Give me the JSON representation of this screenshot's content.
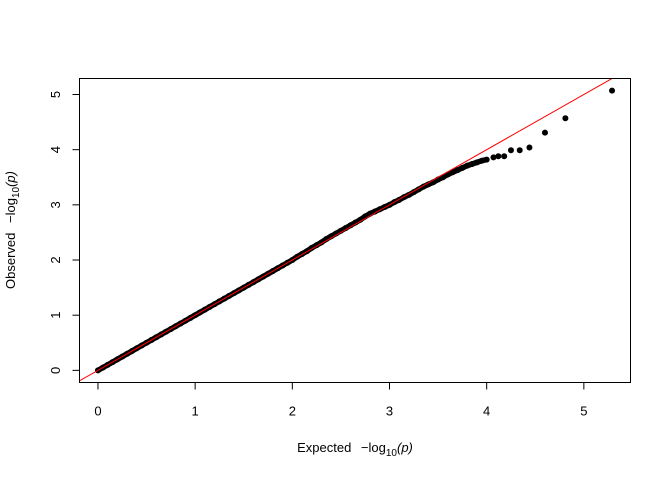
{
  "chart_data": {
    "type": "scatter",
    "title": "",
    "xlabel": {
      "main": "Expected",
      "minus": "−",
      "log": "log",
      "sub": "10",
      "arg": "(p)"
    },
    "ylabel": {
      "main": "Observed",
      "minus": "−",
      "log": "log",
      "sub": "10",
      "arg": "(p)"
    },
    "xlim": [
      -0.19,
      5.48
    ],
    "ylim": [
      -0.22,
      5.29
    ],
    "xticks": [
      0,
      1,
      2,
      3,
      4,
      5
    ],
    "yticks": [
      0,
      1,
      2,
      3,
      4,
      5
    ],
    "grid": false,
    "reference_line": {
      "type": "y=x",
      "color": "#ff0000"
    },
    "point_color": "#000000",
    "points": [
      [
        0,
        0
      ],
      [
        0.05,
        0.05
      ],
      [
        0.1,
        0.1
      ],
      [
        0.15,
        0.15
      ],
      [
        0.2,
        0.2
      ],
      [
        0.25,
        0.25
      ],
      [
        0.3,
        0.3
      ],
      [
        0.35,
        0.35
      ],
      [
        0.4,
        0.4
      ],
      [
        0.45,
        0.45
      ],
      [
        0.5,
        0.5
      ],
      [
        0.55,
        0.55
      ],
      [
        0.6,
        0.6
      ],
      [
        0.65,
        0.65
      ],
      [
        0.7,
        0.7
      ],
      [
        0.75,
        0.75
      ],
      [
        0.8,
        0.8
      ],
      [
        0.85,
        0.85
      ],
      [
        0.9,
        0.9
      ],
      [
        0.95,
        0.95
      ],
      [
        1.0,
        1.0
      ],
      [
        1.05,
        1.05
      ],
      [
        1.1,
        1.1
      ],
      [
        1.15,
        1.15
      ],
      [
        1.2,
        1.2
      ],
      [
        1.25,
        1.25
      ],
      [
        1.3,
        1.3
      ],
      [
        1.35,
        1.35
      ],
      [
        1.4,
        1.4
      ],
      [
        1.45,
        1.45
      ],
      [
        1.5,
        1.5
      ],
      [
        1.55,
        1.55
      ],
      [
        1.6,
        1.6
      ],
      [
        1.65,
        1.65
      ],
      [
        1.7,
        1.7
      ],
      [
        1.75,
        1.75
      ],
      [
        1.8,
        1.8
      ],
      [
        1.85,
        1.85
      ],
      [
        1.9,
        1.9
      ],
      [
        1.95,
        1.95
      ],
      [
        2.0,
        2.0
      ],
      [
        2.05,
        2.06
      ],
      [
        2.1,
        2.11
      ],
      [
        2.15,
        2.16
      ],
      [
        2.2,
        2.22
      ],
      [
        2.25,
        2.27
      ],
      [
        2.3,
        2.32
      ],
      [
        2.35,
        2.38
      ],
      [
        2.4,
        2.43
      ],
      [
        2.45,
        2.48
      ],
      [
        2.5,
        2.53
      ],
      [
        2.55,
        2.58
      ],
      [
        2.6,
        2.63
      ],
      [
        2.65,
        2.68
      ],
      [
        2.7,
        2.73
      ],
      [
        2.75,
        2.79
      ],
      [
        2.8,
        2.84
      ],
      [
        2.85,
        2.88
      ],
      [
        2.9,
        2.92
      ],
      [
        2.95,
        2.96
      ],
      [
        3.0,
        3.0
      ],
      [
        3.05,
        3.05
      ],
      [
        3.1,
        3.09
      ],
      [
        3.15,
        3.14
      ],
      [
        3.2,
        3.18
      ],
      [
        3.25,
        3.23
      ],
      [
        3.3,
        3.28
      ],
      [
        3.35,
        3.33
      ],
      [
        3.4,
        3.37
      ],
      [
        3.45,
        3.41
      ],
      [
        3.5,
        3.46
      ],
      [
        3.55,
        3.5
      ],
      [
        3.6,
        3.55
      ],
      [
        3.65,
        3.59
      ],
      [
        3.7,
        3.63
      ],
      [
        3.75,
        3.67
      ],
      [
        3.8,
        3.71
      ],
      [
        3.85,
        3.74
      ],
      [
        3.9,
        3.77
      ],
      [
        3.95,
        3.8
      ],
      [
        4.0,
        3.82
      ],
      [
        4.07,
        3.86
      ],
      [
        4.12,
        3.88
      ],
      [
        4.18,
        3.88
      ],
      [
        4.25,
        3.99
      ],
      [
        4.34,
        3.99
      ],
      [
        4.44,
        4.04
      ],
      [
        4.6,
        4.31
      ],
      [
        4.81,
        4.57
      ],
      [
        5.29,
        5.07
      ]
    ]
  }
}
